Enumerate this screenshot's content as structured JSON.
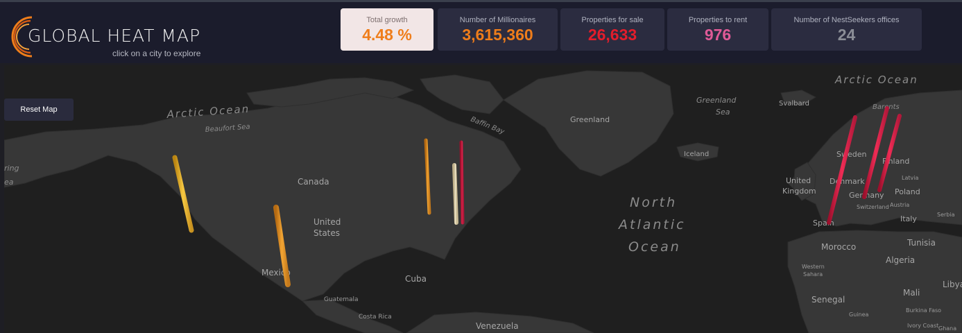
{
  "app": {
    "title": "GLOBAL HEAT MAP",
    "subtitle": "click on a city to explore"
  },
  "stats": [
    {
      "label": "Total growth",
      "value": "4.48 %",
      "color": "#ef7d1a",
      "active": true
    },
    {
      "label": "Number of Millionaires",
      "value": "3,615,360",
      "color": "#ef7d1a",
      "active": false
    },
    {
      "label": "Properties for sale",
      "value": "26,633",
      "color": "#e31d2b",
      "active": false
    },
    {
      "label": "Properties to rent",
      "value": "976",
      "color": "#e05a97",
      "active": false
    },
    {
      "label": "Number of NestSeekers offices",
      "value": "24",
      "color": "#8a8d96",
      "active": false
    }
  ],
  "map": {
    "reset_label": "Reset Map",
    "labels": {
      "arctic_ocean_w": "Arctic Ocean",
      "beaufort_sea": "Beaufort Sea",
      "baffin_bay": "Baffin Bay",
      "greenland": "Greenland",
      "greenland_sea_1": "Greenland",
      "greenland_sea_2": "Sea",
      "svalbard": "Svalbard",
      "arctic_ocean_e": "Arctic Ocean",
      "barents": "Barents",
      "iceland": "Iceland",
      "canada": "Canada",
      "us_1": "United",
      "us_2": "States",
      "mexico": "Mexico",
      "cuba": "Cuba",
      "guatemala": "Guatemala",
      "costa_rica": "Costa Rica",
      "venezuela": "Venezuela",
      "nao_1": "North",
      "nao_2": "Atlantic",
      "nao_3": "Ocean",
      "uk_1": "United",
      "uk_2": "Kingdom",
      "sweden": "Sweden",
      "finland": "Finland",
      "denmark": "Denmark",
      "latvia": "Latvia",
      "germany": "Germany",
      "poland": "Poland",
      "switzerland": "Switzerland",
      "austria": "Austria",
      "spain": "Spain",
      "italy": "Italy",
      "serbia": "Serbia",
      "morocco": "Morocco",
      "tunisia": "Tunisia",
      "algeria": "Algeria",
      "western_sahara_1": "Western",
      "western_sahara_2": "Sahara",
      "libya": "Libya",
      "senegal": "Senegal",
      "mali": "Mali",
      "burkina_faso": "Burkina Faso",
      "guinea": "Guinea",
      "ivory_coast": "Ivory Coast",
      "ghana": "Ghana",
      "bering_1": "ring",
      "bering_2": "ea"
    },
    "bar_colors": {
      "gold": "#f0b428",
      "orange": "#f09a28",
      "cream": "#efe2bf",
      "red": "#e0204a"
    }
  }
}
